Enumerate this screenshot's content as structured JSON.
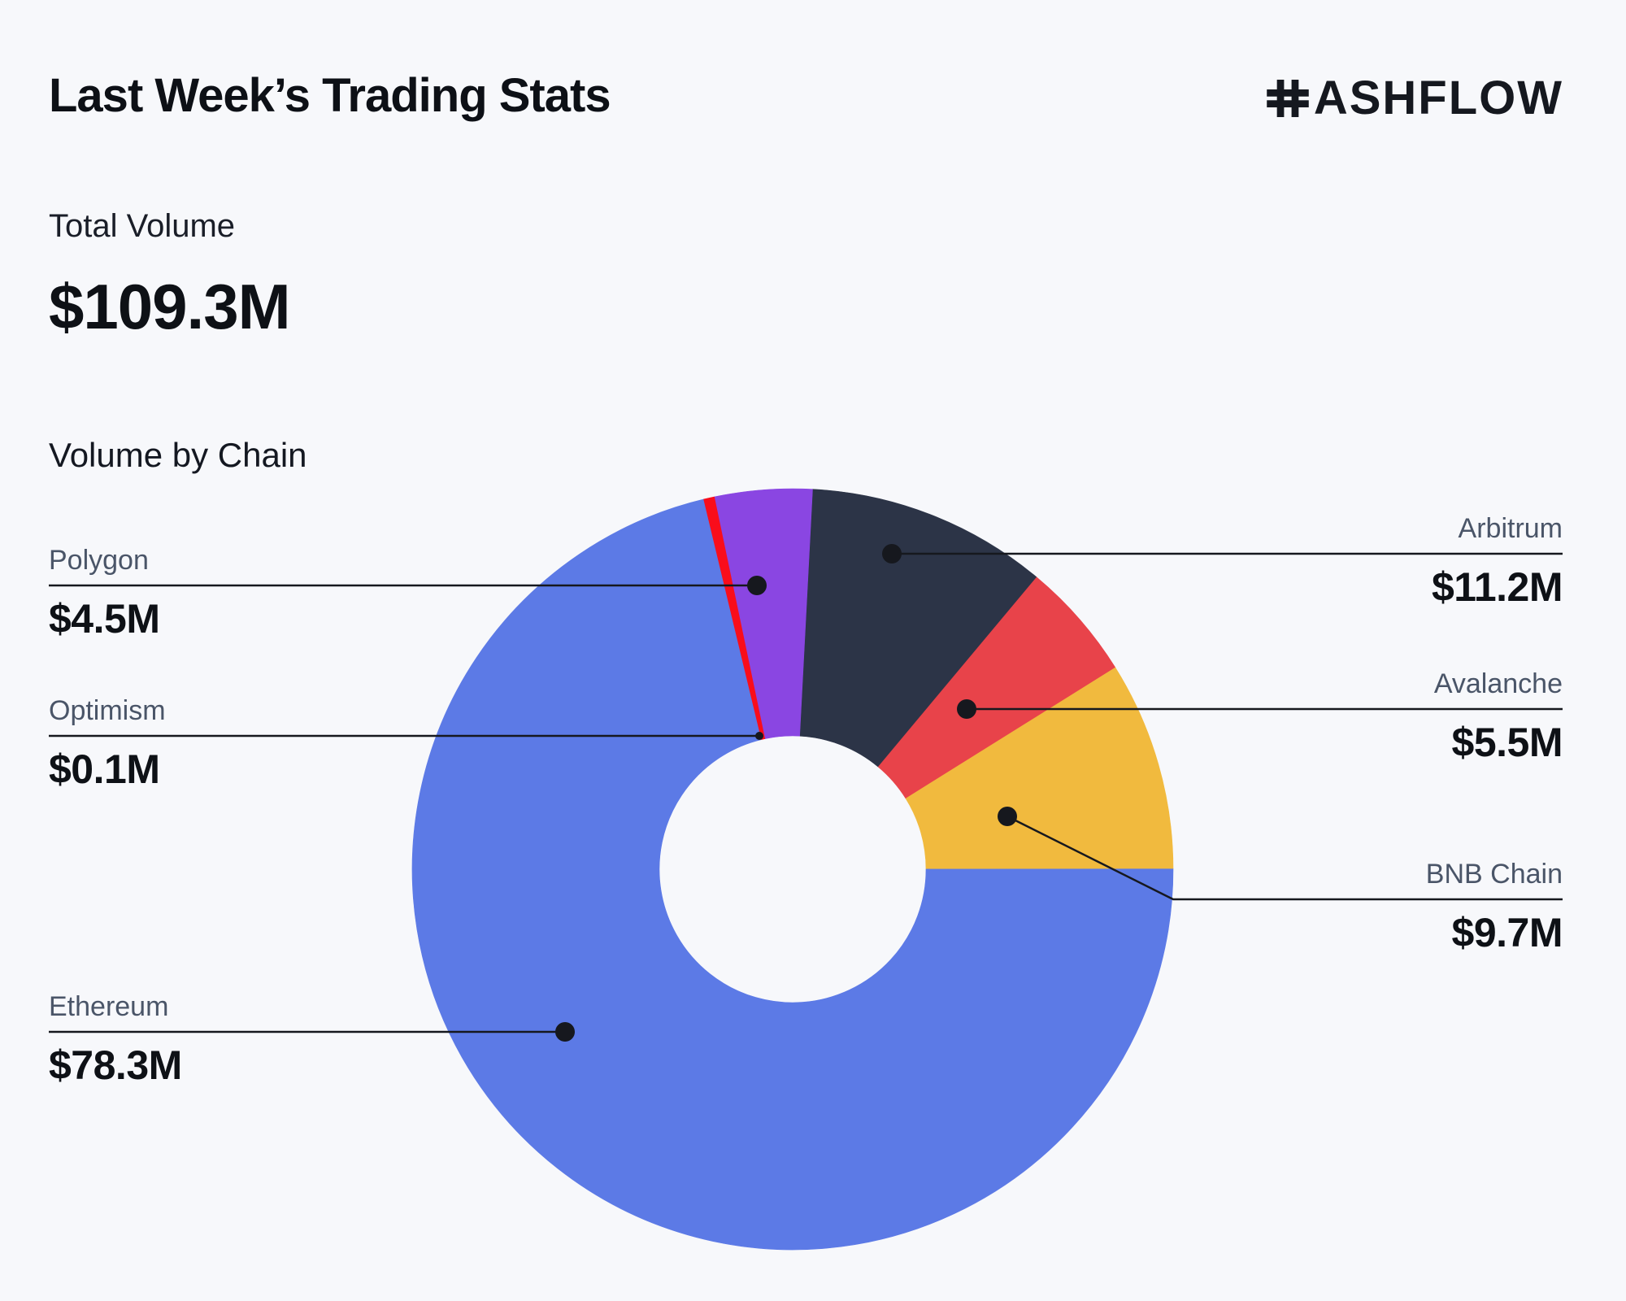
{
  "header": {
    "title": "Last Week’s Trading Stats",
    "brand": "HASHFLOW",
    "logo_mark": "H",
    "logo_text": "ASHFLOW"
  },
  "total_volume": {
    "label": "Total Volume",
    "display": "$109.3M",
    "value_musd": 109.3
  },
  "chart_data": {
    "type": "pie",
    "variant": "donut",
    "title": "Volume by Chain",
    "unit": "USD millions",
    "total": 109.3,
    "start_angle_deg": 3,
    "hole_ratio": 0.35,
    "legend_position": "callout-labels-left-right",
    "categories": [
      "Arbitrum",
      "Avalanche",
      "BNB Chain",
      "Ethereum",
      "Optimism",
      "Polygon"
    ],
    "values": [
      11.2,
      5.5,
      9.7,
      78.3,
      0.1,
      4.5
    ],
    "segments": [
      {
        "label": "Arbitrum",
        "value": 11.2,
        "display": "$11.2M",
        "color": "#2C3447",
        "callout_side": "right"
      },
      {
        "label": "Avalanche",
        "value": 5.5,
        "display": "$5.5M",
        "color": "#E8434A",
        "callout_side": "right"
      },
      {
        "label": "BNB Chain",
        "value": 9.7,
        "display": "$9.7M",
        "color": "#F1BA3E",
        "callout_side": "right"
      },
      {
        "label": "Ethereum",
        "value": 78.3,
        "display": "$78.3M",
        "color": "#5C7AE6",
        "callout_side": "left"
      },
      {
        "label": "Optimism",
        "value": 0.1,
        "display": "$0.1M",
        "color": "#F90D1B",
        "callout_side": "left"
      },
      {
        "label": "Polygon",
        "value": 4.5,
        "display": "$4.5M",
        "color": "#8A46E2",
        "callout_side": "left"
      }
    ]
  },
  "colors": {
    "background": "#F7F8FB",
    "text_primary": "#0E1116",
    "text_label": "#4A5568",
    "callout_line": "#16181E",
    "logo": "#15181F"
  }
}
